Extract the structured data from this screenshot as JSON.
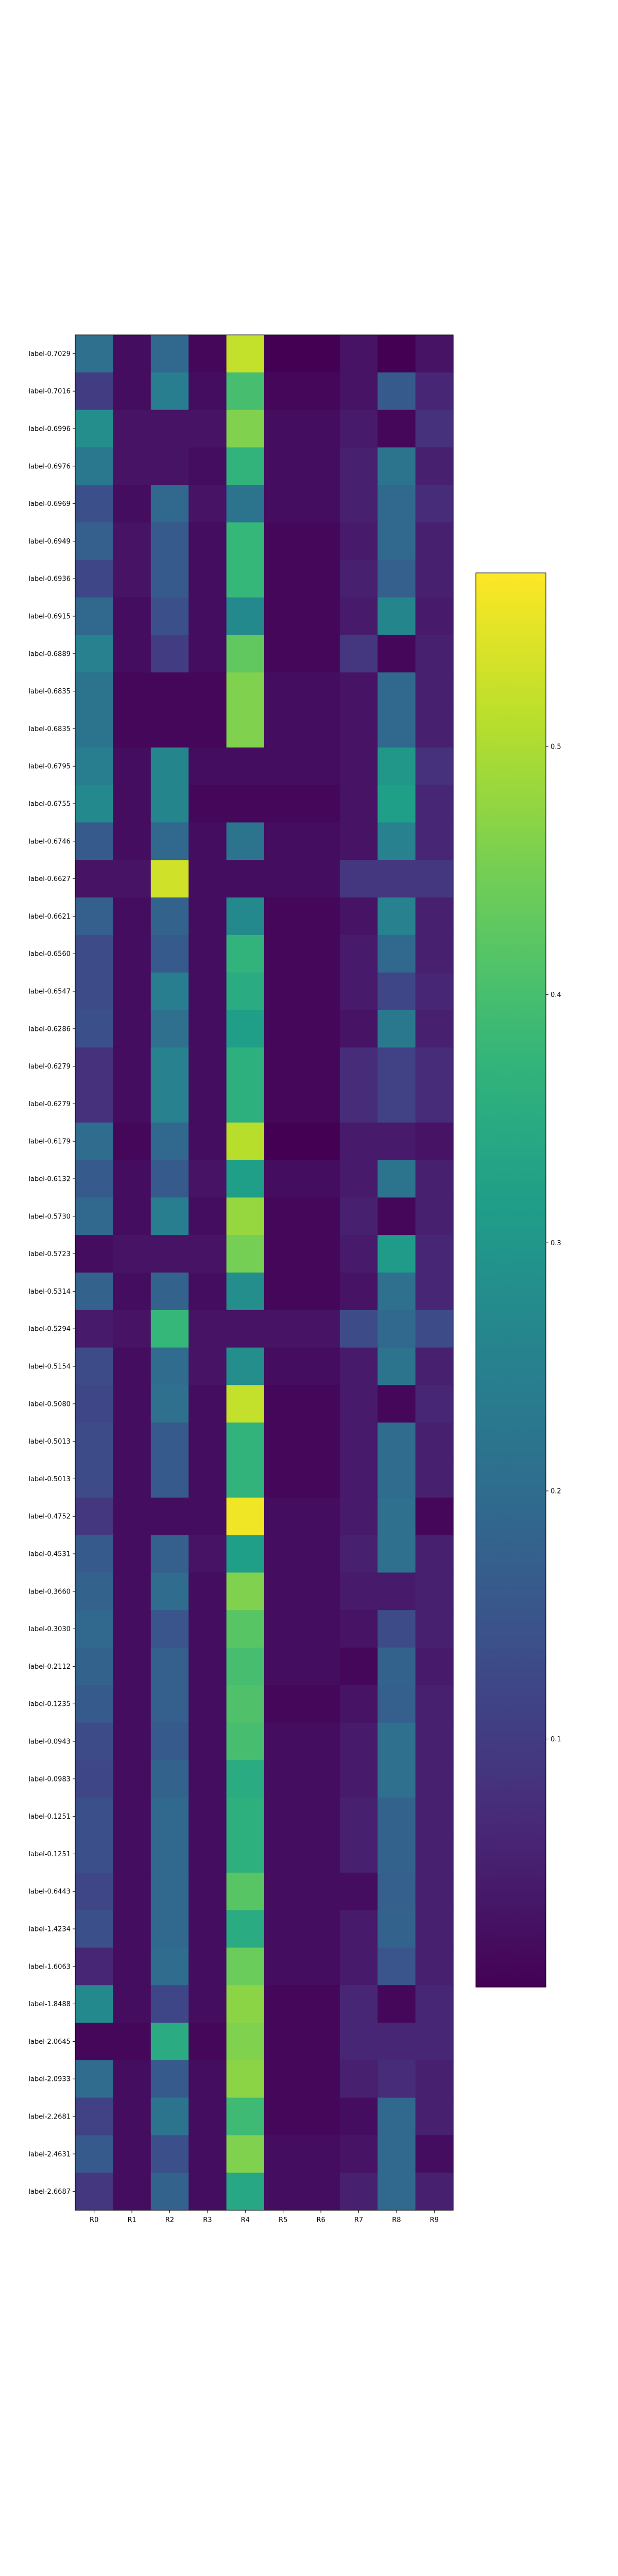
{
  "chart_data": {
    "type": "heatmap",
    "title": "",
    "xlabel": "",
    "ylabel": "",
    "colormap": "viridis",
    "colorbar_range": [
      0.0,
      0.57
    ],
    "colorbar_ticks": [
      {
        "value": 0.1,
        "label": "0.1"
      },
      {
        "value": 0.2,
        "label": "0.2"
      },
      {
        "value": 0.3,
        "label": "0.3"
      },
      {
        "value": 0.4,
        "label": "0.4"
      },
      {
        "value": 0.5,
        "label": "0.5"
      }
    ],
    "columns": [
      "R0",
      "R1",
      "R2",
      "R3",
      "R4",
      "R5",
      "R6",
      "R7",
      "R8",
      "R9"
    ],
    "rows": [
      "label-0.7029",
      "label-0.7016",
      "label-0.6996",
      "label-0.6976",
      "label-0.6969",
      "label-0.6949",
      "label-0.6936",
      "label-0.6915",
      "label-0.6889",
      "label-0.6835",
      "label-0.6835",
      "label-0.6795",
      "label-0.6755",
      "label-0.6746",
      "label-0.6627",
      "label-0.6621",
      "label-0.6560",
      "label-0.6547",
      "label-0.6286",
      "label-0.6279",
      "label-0.6279",
      "label-0.6179",
      "label-0.6132",
      "label-0.5730",
      "label-0.5723",
      "label-0.5314",
      "label-0.5294",
      "label-0.5154",
      "label-0.5080",
      "label-0.5013",
      "label-0.5013",
      "label-0.4752",
      "label-0.4531",
      "label-0.3660",
      "label-0.3030",
      "label-0.2112",
      "label-0.1235",
      "label-0.0943",
      "label-0.0983",
      "label-0.1251",
      "label-0.1251",
      "label-0.6443",
      "label-1.4234",
      "label-1.6063",
      "label-1.8488",
      "label-2.0645",
      "label-2.0933",
      "label-2.2681",
      "label-2.4631",
      "label-2.6687"
    ],
    "values": [
      [
        0.21,
        0.02,
        0.19,
        0.01,
        0.52,
        0.0,
        0.0,
        0.03,
        0.0,
        0.03
      ],
      [
        0.1,
        0.02,
        0.24,
        0.02,
        0.4,
        0.01,
        0.01,
        0.03,
        0.16,
        0.06
      ],
      [
        0.28,
        0.03,
        0.03,
        0.03,
        0.46,
        0.02,
        0.02,
        0.04,
        0.01,
        0.08
      ],
      [
        0.23,
        0.03,
        0.03,
        0.02,
        0.37,
        0.02,
        0.02,
        0.05,
        0.22,
        0.05
      ],
      [
        0.14,
        0.02,
        0.19,
        0.03,
        0.22,
        0.02,
        0.02,
        0.05,
        0.19,
        0.07
      ],
      [
        0.17,
        0.03,
        0.16,
        0.02,
        0.38,
        0.01,
        0.01,
        0.04,
        0.19,
        0.05
      ],
      [
        0.12,
        0.03,
        0.16,
        0.02,
        0.38,
        0.01,
        0.01,
        0.05,
        0.17,
        0.05
      ],
      [
        0.19,
        0.02,
        0.14,
        0.02,
        0.27,
        0.01,
        0.01,
        0.04,
        0.26,
        0.04
      ],
      [
        0.25,
        0.02,
        0.1,
        0.02,
        0.43,
        0.01,
        0.01,
        0.09,
        0.01,
        0.05
      ],
      [
        0.22,
        0.01,
        0.01,
        0.01,
        0.46,
        0.02,
        0.02,
        0.03,
        0.19,
        0.05
      ],
      [
        0.22,
        0.01,
        0.01,
        0.01,
        0.46,
        0.02,
        0.02,
        0.03,
        0.19,
        0.05
      ],
      [
        0.24,
        0.02,
        0.26,
        0.02,
        0.02,
        0.02,
        0.02,
        0.03,
        0.3,
        0.08
      ],
      [
        0.27,
        0.02,
        0.26,
        0.01,
        0.01,
        0.01,
        0.01,
        0.03,
        0.32,
        0.06
      ],
      [
        0.16,
        0.02,
        0.19,
        0.02,
        0.22,
        0.02,
        0.02,
        0.03,
        0.25,
        0.06
      ],
      [
        0.03,
        0.03,
        0.53,
        0.02,
        0.02,
        0.02,
        0.02,
        0.09,
        0.09,
        0.09
      ],
      [
        0.17,
        0.02,
        0.18,
        0.02,
        0.27,
        0.01,
        0.01,
        0.03,
        0.25,
        0.05
      ],
      [
        0.13,
        0.02,
        0.16,
        0.02,
        0.37,
        0.01,
        0.01,
        0.04,
        0.19,
        0.05
      ],
      [
        0.13,
        0.02,
        0.24,
        0.02,
        0.35,
        0.01,
        0.01,
        0.04,
        0.12,
        0.06
      ],
      [
        0.14,
        0.02,
        0.21,
        0.02,
        0.32,
        0.01,
        0.01,
        0.03,
        0.23,
        0.05
      ],
      [
        0.08,
        0.02,
        0.25,
        0.02,
        0.36,
        0.01,
        0.01,
        0.07,
        0.11,
        0.07
      ],
      [
        0.08,
        0.02,
        0.25,
        0.02,
        0.36,
        0.01,
        0.01,
        0.07,
        0.11,
        0.07
      ],
      [
        0.2,
        0.01,
        0.19,
        0.02,
        0.51,
        0.0,
        0.0,
        0.04,
        0.04,
        0.03
      ],
      [
        0.16,
        0.02,
        0.16,
        0.03,
        0.32,
        0.02,
        0.02,
        0.04,
        0.22,
        0.05
      ],
      [
        0.19,
        0.02,
        0.24,
        0.02,
        0.48,
        0.01,
        0.01,
        0.05,
        0.01,
        0.05
      ],
      [
        0.02,
        0.03,
        0.03,
        0.03,
        0.45,
        0.01,
        0.01,
        0.04,
        0.31,
        0.06
      ],
      [
        0.18,
        0.02,
        0.18,
        0.02,
        0.28,
        0.01,
        0.01,
        0.03,
        0.21,
        0.06
      ],
      [
        0.04,
        0.03,
        0.38,
        0.03,
        0.03,
        0.03,
        0.03,
        0.13,
        0.19,
        0.13
      ],
      [
        0.13,
        0.02,
        0.2,
        0.03,
        0.28,
        0.02,
        0.02,
        0.04,
        0.22,
        0.05
      ],
      [
        0.12,
        0.02,
        0.21,
        0.02,
        0.52,
        0.01,
        0.01,
        0.04,
        0.01,
        0.06
      ],
      [
        0.13,
        0.02,
        0.16,
        0.02,
        0.37,
        0.01,
        0.01,
        0.04,
        0.2,
        0.05
      ],
      [
        0.13,
        0.02,
        0.16,
        0.02,
        0.37,
        0.01,
        0.01,
        0.04,
        0.2,
        0.05
      ],
      [
        0.09,
        0.02,
        0.02,
        0.02,
        0.56,
        0.02,
        0.02,
        0.04,
        0.21,
        0.01
      ],
      [
        0.16,
        0.02,
        0.17,
        0.03,
        0.32,
        0.02,
        0.02,
        0.05,
        0.21,
        0.05
      ],
      [
        0.18,
        0.02,
        0.2,
        0.02,
        0.46,
        0.02,
        0.02,
        0.04,
        0.04,
        0.05
      ],
      [
        0.19,
        0.02,
        0.15,
        0.02,
        0.42,
        0.02,
        0.02,
        0.03,
        0.13,
        0.05
      ],
      [
        0.18,
        0.02,
        0.17,
        0.02,
        0.4,
        0.02,
        0.02,
        0.01,
        0.18,
        0.04
      ],
      [
        0.16,
        0.02,
        0.17,
        0.02,
        0.41,
        0.01,
        0.01,
        0.03,
        0.17,
        0.05
      ],
      [
        0.13,
        0.02,
        0.16,
        0.02,
        0.4,
        0.02,
        0.02,
        0.04,
        0.21,
        0.05
      ],
      [
        0.12,
        0.02,
        0.18,
        0.02,
        0.35,
        0.02,
        0.02,
        0.04,
        0.21,
        0.05
      ],
      [
        0.14,
        0.02,
        0.19,
        0.02,
        0.36,
        0.02,
        0.02,
        0.05,
        0.18,
        0.05
      ],
      [
        0.14,
        0.02,
        0.19,
        0.02,
        0.36,
        0.02,
        0.02,
        0.05,
        0.18,
        0.05
      ],
      [
        0.12,
        0.02,
        0.19,
        0.02,
        0.42,
        0.02,
        0.02,
        0.02,
        0.17,
        0.05
      ],
      [
        0.14,
        0.02,
        0.19,
        0.02,
        0.35,
        0.02,
        0.02,
        0.04,
        0.18,
        0.05
      ],
      [
        0.06,
        0.02,
        0.2,
        0.02,
        0.44,
        0.02,
        0.02,
        0.04,
        0.15,
        0.05
      ],
      [
        0.27,
        0.02,
        0.12,
        0.02,
        0.47,
        0.01,
        0.01,
        0.06,
        0.01,
        0.06
      ],
      [
        0.01,
        0.01,
        0.35,
        0.01,
        0.46,
        0.01,
        0.01,
        0.06,
        0.06,
        0.06
      ],
      [
        0.2,
        0.02,
        0.16,
        0.02,
        0.47,
        0.01,
        0.01,
        0.05,
        0.07,
        0.05
      ],
      [
        0.11,
        0.02,
        0.22,
        0.02,
        0.39,
        0.01,
        0.01,
        0.02,
        0.19,
        0.05
      ],
      [
        0.16,
        0.02,
        0.14,
        0.02,
        0.46,
        0.02,
        0.02,
        0.03,
        0.19,
        0.02
      ],
      [
        0.09,
        0.02,
        0.18,
        0.02,
        0.34,
        0.02,
        0.02,
        0.05,
        0.19,
        0.05
      ]
    ]
  }
}
